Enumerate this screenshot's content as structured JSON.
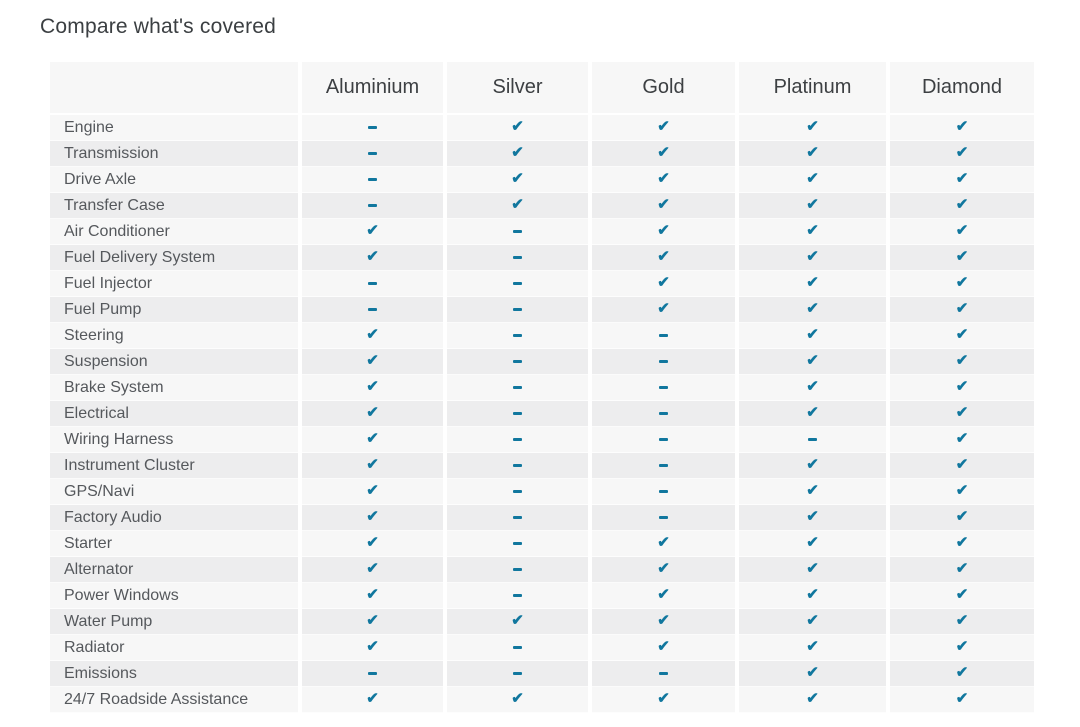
{
  "page": {
    "title": "Compare what's covered"
  },
  "table": {
    "check_symbol": "✔",
    "plans": [
      "Aluminium",
      "Silver",
      "Gold",
      "Platinum",
      "Diamond"
    ],
    "rows": [
      {
        "label": "Engine",
        "coverage": [
          false,
          true,
          true,
          true,
          true
        ]
      },
      {
        "label": "Transmission",
        "coverage": [
          false,
          true,
          true,
          true,
          true
        ]
      },
      {
        "label": "Drive Axle",
        "coverage": [
          false,
          true,
          true,
          true,
          true
        ]
      },
      {
        "label": "Transfer Case",
        "coverage": [
          false,
          true,
          true,
          true,
          true
        ]
      },
      {
        "label": "Air Conditioner",
        "coverage": [
          true,
          false,
          true,
          true,
          true
        ]
      },
      {
        "label": "Fuel Delivery System",
        "coverage": [
          true,
          false,
          true,
          true,
          true
        ]
      },
      {
        "label": "Fuel Injector",
        "coverage": [
          false,
          false,
          true,
          true,
          true
        ]
      },
      {
        "label": "Fuel Pump",
        "coverage": [
          false,
          false,
          true,
          true,
          true
        ]
      },
      {
        "label": "Steering",
        "coverage": [
          true,
          false,
          false,
          true,
          true
        ]
      },
      {
        "label": "Suspension",
        "coverage": [
          true,
          false,
          false,
          true,
          true
        ]
      },
      {
        "label": "Brake System",
        "coverage": [
          true,
          false,
          false,
          true,
          true
        ]
      },
      {
        "label": "Electrical",
        "coverage": [
          true,
          false,
          false,
          true,
          true
        ]
      },
      {
        "label": "Wiring Harness",
        "coverage": [
          true,
          false,
          false,
          false,
          true
        ]
      },
      {
        "label": "Instrument Cluster",
        "coverage": [
          true,
          false,
          false,
          true,
          true
        ]
      },
      {
        "label": "GPS/Navi",
        "coverage": [
          true,
          false,
          false,
          true,
          true
        ]
      },
      {
        "label": "Factory Audio",
        "coverage": [
          true,
          false,
          false,
          true,
          true
        ]
      },
      {
        "label": "Starter",
        "coverage": [
          true,
          false,
          true,
          true,
          true
        ]
      },
      {
        "label": "Alternator",
        "coverage": [
          true,
          false,
          true,
          true,
          true
        ]
      },
      {
        "label": "Power Windows",
        "coverage": [
          true,
          false,
          true,
          true,
          true
        ]
      },
      {
        "label": "Water Pump",
        "coverage": [
          true,
          true,
          true,
          true,
          true
        ]
      },
      {
        "label": "Radiator",
        "coverage": [
          true,
          false,
          true,
          true,
          true
        ]
      },
      {
        "label": "Emissions",
        "coverage": [
          false,
          false,
          false,
          true,
          true
        ]
      },
      {
        "label": "24/7 Roadside Assistance",
        "coverage": [
          true,
          true,
          true,
          true,
          true
        ]
      }
    ]
  },
  "colors": {
    "accent_check": "#11779e",
    "header_bg": "#f7f7f7",
    "row_alt_bg": "#ededee",
    "title_text": "#3b3f42",
    "label_text": "#55585c"
  }
}
